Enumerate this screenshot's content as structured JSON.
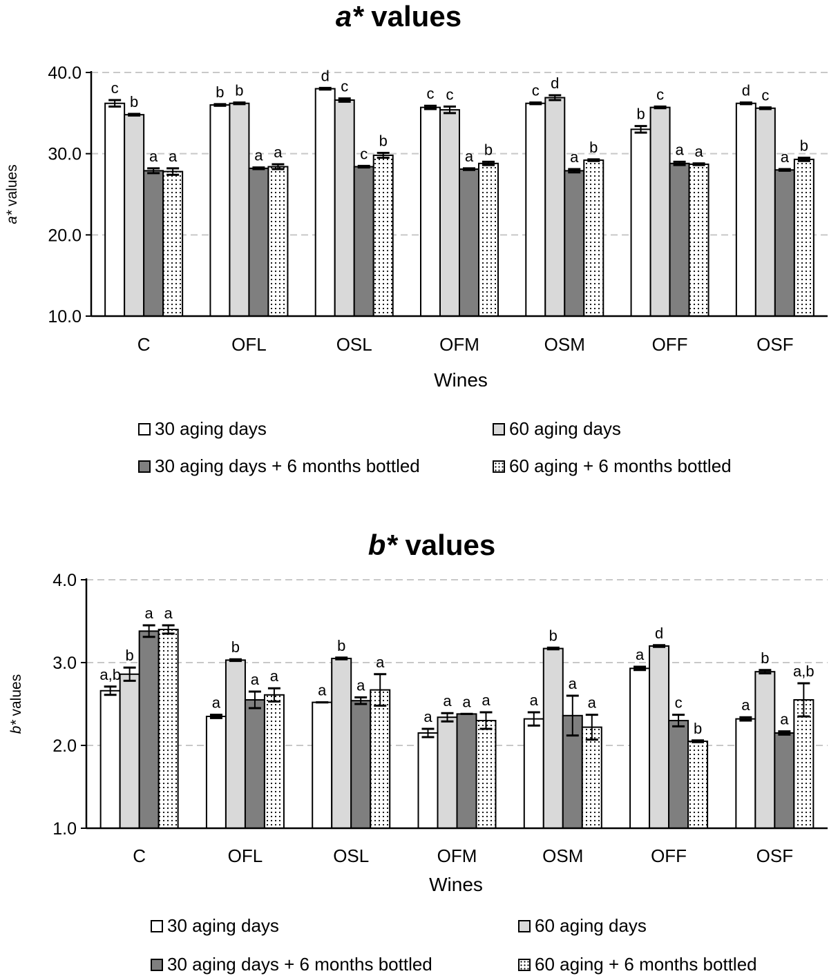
{
  "legend": {
    "s1": "30 aging days",
    "s2": "60 aging days",
    "s3": "30 aging days + 6 months bottled",
    "s4": "60 aging + 6 months bottled"
  },
  "colors": {
    "s1": "#ffffff",
    "s2": "#d9d9d9",
    "s3": "#7f7f7f",
    "s4": "#ffffff",
    "grid": "#c8c8c8"
  },
  "chart_data": [
    {
      "type": "bar",
      "title_italic": "a*",
      "title_rest": " values",
      "xlabel": "Wines",
      "ylabel_italic": "a*",
      "ylabel_rest": " values",
      "ylim": [
        10,
        40
      ],
      "yticks": [
        "10.0",
        "20.0",
        "30.0",
        "40.0"
      ],
      "categories": [
        "C",
        "OFL",
        "OSL",
        "OFM",
        "OSM",
        "OFF",
        "OSF"
      ],
      "series": [
        {
          "name": "30 aging days",
          "values": [
            36.2,
            36.0,
            38.0,
            35.7,
            36.2,
            33.0,
            36.2
          ],
          "errors": [
            0.4,
            0.1,
            0.1,
            0.2,
            0.1,
            0.4,
            0.1
          ],
          "letters": [
            "c",
            "b",
            "d",
            "c",
            "c",
            "b",
            "d"
          ]
        },
        {
          "name": "60 aging days",
          "values": [
            34.8,
            36.2,
            36.6,
            35.4,
            36.9,
            35.7,
            35.6
          ],
          "errors": [
            0.1,
            0.1,
            0.2,
            0.4,
            0.3,
            0.1,
            0.1
          ],
          "letters": [
            "b",
            "b",
            "c",
            "c",
            "d",
            "c",
            "c"
          ]
        },
        {
          "name": "30 aging days + 6 months bottled",
          "values": [
            27.9,
            28.2,
            28.4,
            28.1,
            27.9,
            28.8,
            28.0
          ],
          "errors": [
            0.3,
            0.1,
            0.1,
            0.1,
            0.2,
            0.2,
            0.1
          ],
          "letters": [
            "a",
            "a",
            "c",
            "a",
            "a",
            "a",
            "a"
          ]
        },
        {
          "name": "60 aging + 6 months bottled",
          "values": [
            27.8,
            28.4,
            29.8,
            28.8,
            29.2,
            28.7,
            29.3
          ],
          "errors": [
            0.4,
            0.3,
            0.3,
            0.2,
            0.1,
            0.1,
            0.2
          ],
          "letters": [
            "a",
            "a",
            "b",
            "b",
            "b",
            "a",
            "b"
          ]
        }
      ]
    },
    {
      "type": "bar",
      "title_italic": "b*",
      "title_rest": " values",
      "xlabel": "Wines",
      "ylabel_italic": "b*",
      "ylabel_rest": " values",
      "ylim": [
        1,
        4
      ],
      "yticks": [
        "1.0",
        "2.0",
        "3.0",
        "4.0"
      ],
      "categories": [
        "C",
        "OFL",
        "OSL",
        "OFM",
        "OSM",
        "OFF",
        "OSF"
      ],
      "series": [
        {
          "name": "30 aging days",
          "values": [
            2.66,
            2.35,
            2.52,
            2.15,
            2.32,
            2.93,
            2.32
          ],
          "errors": [
            0.05,
            0.02,
            0.0,
            0.05,
            0.08,
            0.02,
            0.02
          ],
          "letters": [
            "a,b",
            "a",
            "a",
            "a",
            "a",
            "a",
            "a"
          ]
        },
        {
          "name": "60 aging days",
          "values": [
            2.86,
            3.03,
            3.05,
            2.34,
            3.17,
            3.2,
            2.89
          ],
          "errors": [
            0.08,
            0.01,
            0.01,
            0.05,
            0.01,
            0.01,
            0.02
          ],
          "letters": [
            "b",
            "b",
            "b",
            "a",
            "b",
            "d",
            "b"
          ]
        },
        {
          "name": "30 aging days + 6 months bottled",
          "values": [
            3.38,
            2.55,
            2.54,
            2.38,
            2.36,
            2.3,
            2.15
          ],
          "errors": [
            0.07,
            0.1,
            0.04,
            0.0,
            0.24,
            0.07,
            0.02
          ],
          "letters": [
            "a",
            "a",
            "a",
            "a",
            "a",
            "c",
            "a"
          ]
        },
        {
          "name": "60 aging + 6 months bottled",
          "values": [
            3.4,
            2.61,
            2.67,
            2.3,
            2.22,
            2.05,
            2.55
          ],
          "errors": [
            0.05,
            0.08,
            0.19,
            0.1,
            0.15,
            0.01,
            0.2
          ],
          "letters": [
            "a",
            "a",
            "a",
            "a",
            "a",
            "b",
            "a,b"
          ]
        }
      ]
    }
  ]
}
